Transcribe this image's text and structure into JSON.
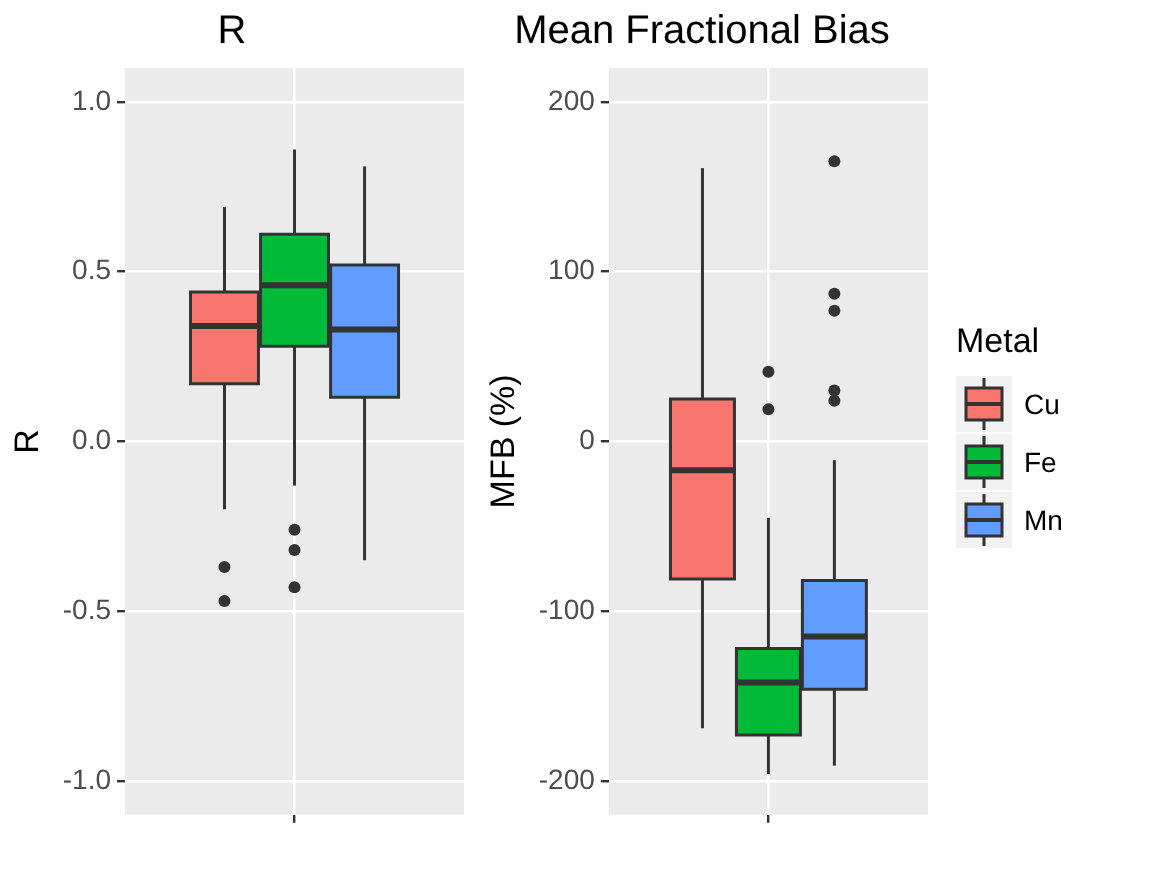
{
  "chart_data": [
    {
      "type": "box",
      "title": "R",
      "ylabel": "R",
      "categories": [
        null
      ],
      "ylim": [
        -1.1,
        1.1
      ],
      "yticks": [
        {
          "value": -1,
          "label": "-1.0"
        },
        {
          "value": -0.5,
          "label": "-0.5"
        },
        {
          "value": 0,
          "label": "0.0"
        },
        {
          "value": 0.5,
          "label": "0.5"
        },
        {
          "value": 1,
          "label": "1.0"
        }
      ],
      "grid": true,
      "series": [
        {
          "color": "#f8766d",
          "boxes": [
            {
              "low": -0.2,
              "q1": 0.17,
              "median": 0.34,
              "q3": 0.44,
              "high": 0.69,
              "outliers": [
                -0.37,
                -0.47
              ]
            }
          ]
        },
        {
          "color": "#00ba38",
          "boxes": [
            {
              "low": -0.13,
              "q1": 0.28,
              "median": 0.46,
              "q3": 0.61,
              "high": 0.86,
              "outliers": [
                -0.26,
                -0.32,
                -0.43
              ]
            }
          ]
        },
        {
          "color": "#619cff",
          "boxes": [
            {
              "low": -0.35,
              "q1": 0.13,
              "median": 0.33,
              "q3": 0.52,
              "high": 0.81
            }
          ]
        }
      ]
    },
    {
      "type": "box",
      "title": "Mean Fractional Bias",
      "ylabel": "MFB (%)",
      "legend_title": "Metal",
      "legend": "right",
      "categories": [
        null
      ],
      "ylim": [
        -220,
        220
      ],
      "yticks": [
        -200,
        -100,
        0,
        100,
        200
      ],
      "grid": true,
      "series": [
        {
          "name": "Cu",
          "color": "#f8766d",
          "boxes": [
            {
              "low": -169,
              "q1": -81,
              "median": -17,
              "q3": 25,
              "high": 161
            }
          ]
        },
        {
          "name": "Fe",
          "color": "#00ba38",
          "boxes": [
            {
              "low": -196,
              "q1": -173,
              "median": -142,
              "q3": -122,
              "high": -45,
              "outliers": [
                41,
                19
              ]
            }
          ]
        },
        {
          "name": "Mn",
          "color": "#619cff",
          "boxes": [
            {
              "low": -191,
              "q1": -146,
              "median": -115,
              "q3": -82,
              "high": -11,
              "outliers": [
                165,
                87,
                77,
                30,
                24
              ]
            }
          ]
        }
      ]
    }
  ]
}
